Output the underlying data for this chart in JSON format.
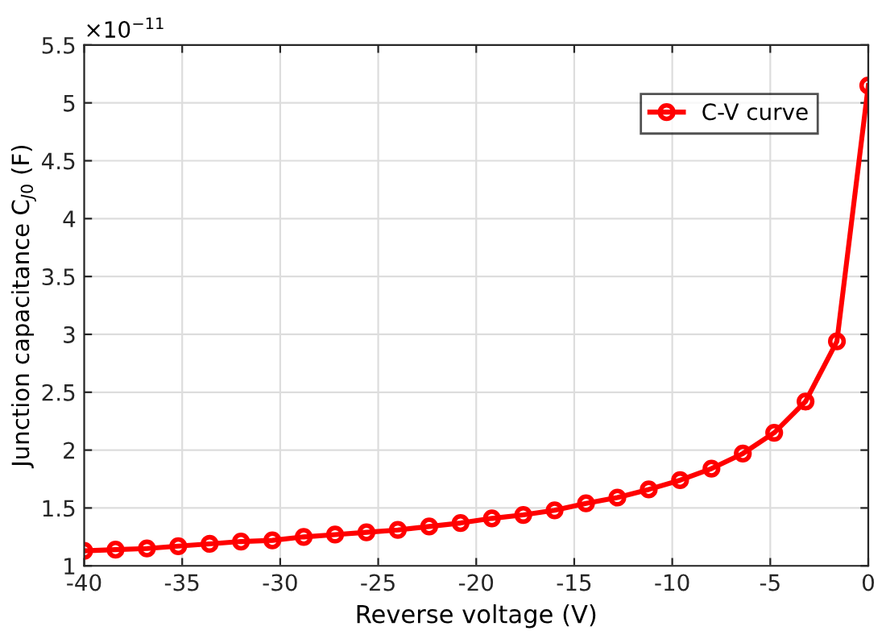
{
  "chart_data": {
    "type": "line",
    "xlabel": "Reverse voltage (V)",
    "ylabel": "Junction capacitance C$_{J0}$ (F)",
    "annotations": [
      "×10$^{−11}$"
    ],
    "x": [
      -40,
      -38.4,
      -36.8,
      -35.2,
      -33.6,
      -32,
      -30.4,
      -28.8,
      -27.2,
      -25.6,
      -24,
      -22.4,
      -20.8,
      -19.2,
      -17.6,
      -16,
      -14.4,
      -12.8,
      -11.2,
      -9.6,
      -8,
      -6.4,
      -4.8,
      -3.2,
      -1.6,
      0
    ],
    "series": [
      {
        "name": "C-V curve",
        "color": "#ff0000",
        "values": [
          1.13,
          1.14,
          1.15,
          1.17,
          1.19,
          1.21,
          1.22,
          1.25,
          1.27,
          1.29,
          1.31,
          1.34,
          1.37,
          1.41,
          1.44,
          1.48,
          1.54,
          1.59,
          1.66,
          1.74,
          1.84,
          1.97,
          2.15,
          2.42,
          2.94,
          5.15
        ]
      }
    ],
    "xlim": [
      -40,
      0
    ],
    "xticks": [
      -40,
      -35,
      -30,
      -25,
      -20,
      -15,
      -10,
      -5,
      0
    ],
    "ylim": [
      1,
      5.5
    ],
    "yticks": [
      1,
      1.5,
      2,
      2.5,
      3,
      3.5,
      4,
      4.5,
      5,
      5.5
    ],
    "grid": true,
    "legend": "top right",
    "marker": "circle",
    "line_style": "solid"
  }
}
